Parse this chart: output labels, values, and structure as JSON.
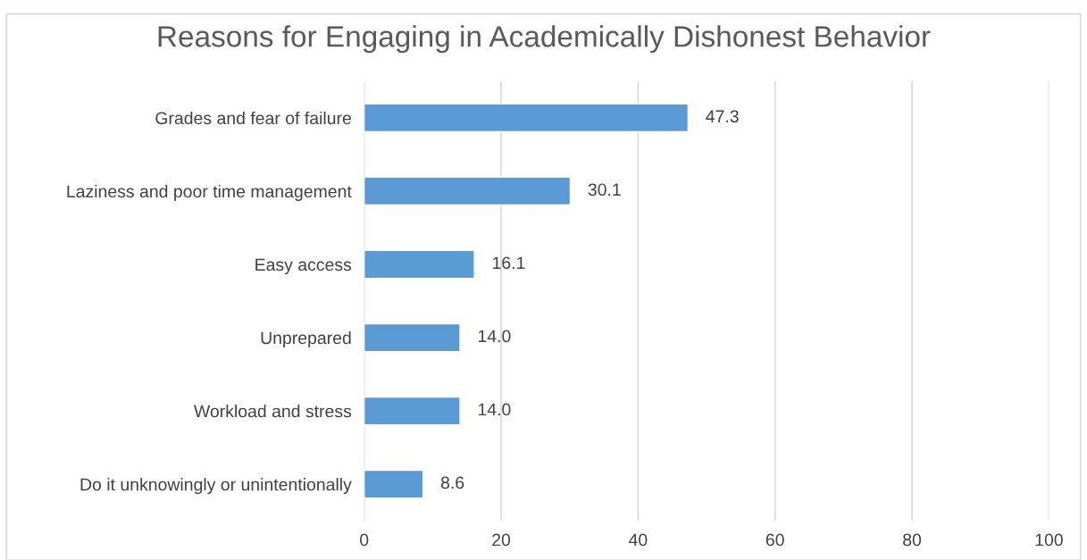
{
  "chart_data": {
    "type": "bar",
    "orientation": "horizontal",
    "title": "Reasons for Engaging in Academically Dishonest Behavior",
    "categories": [
      "Grades and fear of failure",
      "Laziness and poor time management",
      "Easy access",
      "Unprepared",
      "Workload and stress",
      "Do it unknowingly or unintentionally"
    ],
    "values": [
      47.3,
      30.1,
      16.1,
      14.0,
      14.0,
      8.6
    ],
    "value_labels": [
      "47.3",
      "30.1",
      "16.1",
      "14.0",
      "14.0",
      "8.6"
    ],
    "color": "#5b9bd5",
    "xlim": [
      0,
      100
    ],
    "xticks": [
      0,
      20,
      40,
      60,
      80,
      100
    ],
    "grid": "x",
    "legend": false
  }
}
